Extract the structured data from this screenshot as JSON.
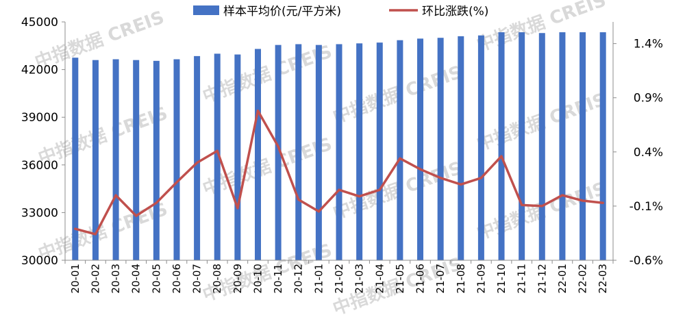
{
  "chart_data": {
    "type": "bar+line",
    "categories": [
      "20-01",
      "20-02",
      "20-03",
      "20-04",
      "20-05",
      "20-06",
      "20-07",
      "20-08",
      "20-09",
      "20-10",
      "20-11",
      "20-12",
      "21-01",
      "21-02",
      "21-03",
      "21-04",
      "21-05",
      "21-06",
      "21-07",
      "21-08",
      "21-09",
      "21-10",
      "21-11",
      "21-12",
      "22-01",
      "22-02",
      "22-03"
    ],
    "series": [
      {
        "name": "样本平均价(元/平方米)",
        "type": "bar",
        "axis": "left",
        "color": "#4472c4",
        "values": [
          42750,
          42600,
          42650,
          42600,
          42550,
          42650,
          42850,
          43000,
          42950,
          43300,
          43550,
          43600,
          43550,
          43600,
          43650,
          43700,
          43850,
          43950,
          44000,
          44100,
          44150,
          44350,
          44350,
          44300,
          44350,
          44350,
          44350
        ]
      },
      {
        "name": "环比涨跌(%)",
        "type": "line",
        "axis": "right",
        "color": "#c0504d",
        "values": [
          -0.31,
          -0.36,
          0.0,
          -0.19,
          -0.07,
          0.12,
          0.3,
          0.41,
          -0.12,
          0.78,
          0.45,
          -0.04,
          -0.15,
          0.05,
          -0.01,
          0.05,
          0.34,
          0.24,
          0.16,
          0.1,
          0.16,
          0.36,
          -0.09,
          -0.1,
          0.0,
          -0.05,
          -0.07
        ]
      }
    ],
    "left_axis": {
      "min": 30000,
      "max": 45000,
      "ticks": [
        "45000",
        "42000",
        "39000",
        "36000",
        "33000",
        "30000"
      ]
    },
    "right_axis": {
      "min": -0.6,
      "max": 1.6,
      "ticks": [
        "1.4%",
        "0.9%",
        "0.4%",
        "-0.1%",
        "-0.6%"
      ]
    },
    "legend_position": "top",
    "grid": false
  },
  "watermark_text": "中指数据 CREIS"
}
